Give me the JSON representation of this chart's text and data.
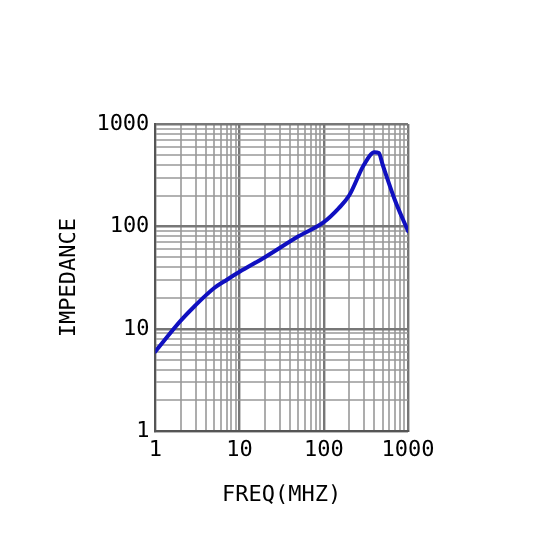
{
  "chart_data": {
    "type": "line",
    "xlabel": "FREQ(MHZ)",
    "ylabel": "IMPEDANCE",
    "x": [
      1,
      2,
      3,
      5,
      7,
      10,
      20,
      50,
      100,
      150,
      200,
      300,
      400,
      450,
      500,
      700,
      1000
    ],
    "series": [
      {
        "color": "#1010c0",
        "values": [
          6,
          12,
          17,
          25,
          30,
          36,
          50,
          80,
          110,
          150,
          200,
          400,
          530,
          520,
          400,
          180,
          90
        ]
      }
    ],
    "log": "xy",
    "grid": true,
    "legend": false,
    "marker": "none",
    "line_style": "solid",
    "xlim": [
      1,
      1000
    ],
    "ylim": [
      1,
      1000
    ],
    "xticks": [
      1,
      {
        "value": 2,
        "label": null
      },
      {
        "value": 3,
        "label": null
      },
      {
        "value": 4,
        "label": null
      },
      {
        "value": 5,
        "label": null
      },
      {
        "value": 6,
        "label": null
      },
      {
        "value": 7,
        "label": null
      },
      {
        "value": 8,
        "label": null
      },
      {
        "value": 9,
        "label": null
      },
      10,
      {
        "value": 20,
        "label": null
      },
      {
        "value": 30,
        "label": null
      },
      {
        "value": 40,
        "label": null
      },
      {
        "value": 50,
        "label": null
      },
      {
        "value": 60,
        "label": null
      },
      {
        "value": 70,
        "label": null
      },
      {
        "value": 80,
        "label": null
      },
      {
        "value": 90,
        "label": null
      },
      100,
      {
        "value": 200,
        "label": null
      },
      {
        "value": 300,
        "label": null
      },
      {
        "value": 400,
        "label": null
      },
      {
        "value": 500,
        "label": null
      },
      {
        "value": 600,
        "label": null
      },
      {
        "value": 700,
        "label": null
      },
      {
        "value": 800,
        "label": null
      },
      {
        "value": 900,
        "label": null
      },
      1000
    ],
    "yticks": [
      1,
      {
        "value": 2,
        "label": null
      },
      {
        "value": 3,
        "label": null
      },
      {
        "value": 4,
        "label": null
      },
      {
        "value": 5,
        "label": null
      },
      {
        "value": 6,
        "label": null
      },
      {
        "value": 7,
        "label": null
      },
      {
        "value": 8,
        "label": null
      },
      {
        "value": 9,
        "label": null
      },
      10,
      {
        "value": 20,
        "label": null
      },
      {
        "value": 30,
        "label": null
      },
      {
        "value": 40,
        "label": null
      },
      {
        "value": 50,
        "label": null
      },
      {
        "value": 60,
        "label": null
      },
      {
        "value": 70,
        "label": null
      },
      {
        "value": 80,
        "label": null
      },
      {
        "value": 90,
        "label": null
      },
      100,
      {
        "value": 200,
        "label": null
      },
      {
        "value": 300,
        "label": null
      },
      {
        "value": 400,
        "label": null
      },
      {
        "value": 500,
        "label": null
      },
      {
        "value": 600,
        "label": null
      },
      {
        "value": 700,
        "label": null
      },
      {
        "value": 800,
        "label": null
      },
      {
        "value": 900,
        "label": null
      },
      1000
    ]
  }
}
